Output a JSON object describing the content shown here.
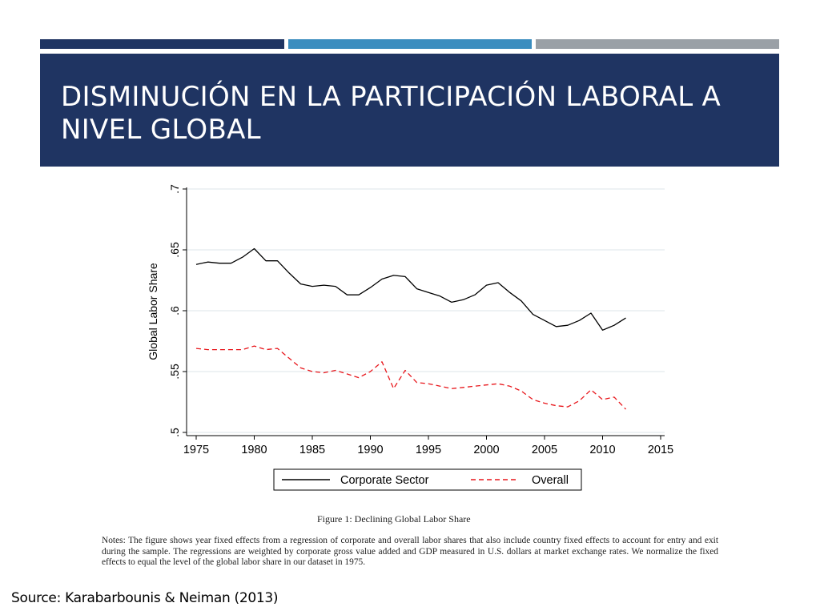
{
  "colors": {
    "navy": "#1f3462",
    "blue": "#3b8dbf",
    "gray": "#9aa0a6",
    "series_corporate": "#000000",
    "series_overall": "#e8161b"
  },
  "slide": {
    "title": "DISMINUCIÓN EN LA PARTICIPACIÓN LABORAL A NIVEL GLOBAL",
    "source": "Source: Karabarbounis & Neiman (2013)"
  },
  "figure": {
    "caption": "Figure 1: Declining Global Labor Share",
    "notes": "Notes: The figure shows year fixed effects from a regression of corporate and overall labor shares that also include country fixed effects to account for entry and exit during the sample. The regressions are weighted by corporate gross value added and GDP measured in U.S. dollars at market exchange rates. We normalize the fixed effects to equal the level of the global labor share in our dataset in 1975."
  },
  "chart_data": {
    "type": "line",
    "title": "",
    "xlabel": "",
    "ylabel": "Global Labor Share",
    "xlim": [
      1975,
      2015
    ],
    "ylim": [
      0.5,
      0.7
    ],
    "x_ticks": [
      "1975",
      "1980",
      "1985",
      "1990",
      "1995",
      "2000",
      "2005",
      "2010",
      "2015"
    ],
    "y_ticks": [
      ".5",
      ".55",
      ".6",
      ".65",
      ".7"
    ],
    "grid": "horizontal",
    "legend_position": "bottom",
    "x": [
      1975,
      1976,
      1977,
      1978,
      1979,
      1980,
      1981,
      1982,
      1983,
      1984,
      1985,
      1986,
      1987,
      1988,
      1989,
      1990,
      1991,
      1992,
      1993,
      1994,
      1995,
      1996,
      1997,
      1998,
      1999,
      2000,
      2001,
      2002,
      2003,
      2004,
      2005,
      2006,
      2007,
      2008,
      2009,
      2010,
      2011,
      2012
    ],
    "series": [
      {
        "name": "Corporate Sector",
        "style": "solid",
        "values": [
          0.638,
          0.64,
          0.639,
          0.639,
          0.644,
          0.651,
          0.641,
          0.641,
          0.631,
          0.622,
          0.62,
          0.621,
          0.62,
          0.613,
          0.613,
          0.619,
          0.626,
          0.629,
          0.628,
          0.618,
          0.615,
          0.612,
          0.607,
          0.609,
          0.613,
          0.621,
          0.623,
          0.615,
          0.608,
          0.597,
          0.592,
          0.587,
          0.588,
          0.592,
          0.598,
          0.584,
          0.588,
          0.594
        ]
      },
      {
        "name": "Overall",
        "style": "dashed",
        "values": [
          0.569,
          0.568,
          0.568,
          0.568,
          0.568,
          0.571,
          0.568,
          0.569,
          0.561,
          0.553,
          0.55,
          0.549,
          0.551,
          0.548,
          0.545,
          0.55,
          0.558,
          0.536,
          0.551,
          0.541,
          0.54,
          0.538,
          0.536,
          0.537,
          0.538,
          0.539,
          0.54,
          0.538,
          0.534,
          0.527,
          0.524,
          0.522,
          0.521,
          0.526,
          0.535,
          0.527,
          0.529,
          0.519
        ]
      }
    ]
  }
}
